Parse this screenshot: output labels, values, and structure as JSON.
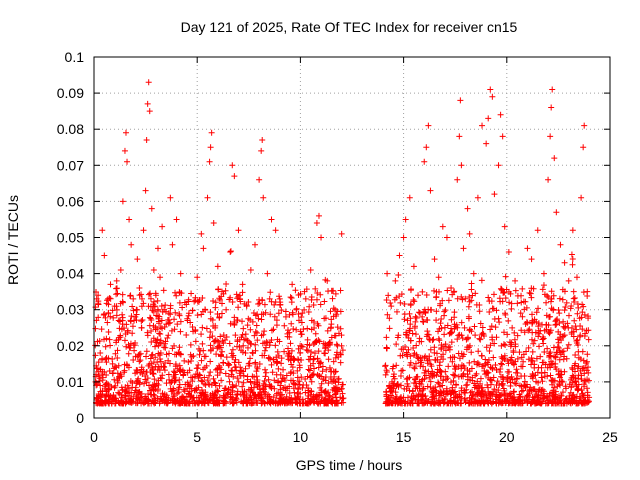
{
  "chart_data": {
    "type": "scatter",
    "title": "Day 121 of 2025, Rate Of TEC Index for receiver cn15",
    "xlabel": "GPS time / hours",
    "ylabel": "ROTI / TECUs",
    "xlim": [
      0,
      25
    ],
    "ylim": [
      0,
      0.1
    ],
    "x_ticks": [
      "0",
      "5",
      "10",
      "15",
      "20",
      "25"
    ],
    "y_ticks": [
      "0",
      "0.01",
      "0.02",
      "0.03",
      "0.04",
      "0.05",
      "0.06",
      "0.07",
      "0.08",
      "0.09",
      "0.1"
    ],
    "grid": true,
    "marker": "+",
    "color": "#ff0000",
    "data_gap_hours": [
      12.1,
      14.1
    ],
    "series": [
      {
        "points": [
          [
            0.1,
            0.012
          ],
          [
            0.2,
            0.034
          ],
          [
            0.3,
            0.018
          ],
          [
            0.4,
            0.052
          ],
          [
            0.5,
            0.045
          ],
          [
            0.6,
            0.022
          ],
          [
            0.7,
            0.029
          ],
          [
            0.8,
            0.037
          ],
          [
            0.9,
            0.015
          ],
          [
            1.0,
            0.031
          ],
          [
            1.1,
            0.038
          ],
          [
            1.2,
            0.027
          ],
          [
            1.3,
            0.041
          ],
          [
            1.4,
            0.06
          ],
          [
            1.5,
            0.074
          ],
          [
            1.55,
            0.079
          ],
          [
            1.6,
            0.071
          ],
          [
            1.7,
            0.055
          ],
          [
            1.8,
            0.048
          ],
          [
            1.9,
            0.033
          ],
          [
            2.0,
            0.028
          ],
          [
            2.1,
            0.044
          ],
          [
            2.2,
            0.036
          ],
          [
            2.3,
            0.025
          ],
          [
            2.4,
            0.052
          ],
          [
            2.5,
            0.063
          ],
          [
            2.55,
            0.077
          ],
          [
            2.6,
            0.087
          ],
          [
            2.65,
            0.093
          ],
          [
            2.7,
            0.085
          ],
          [
            2.8,
            0.058
          ],
          [
            2.9,
            0.041
          ],
          [
            3.0,
            0.034
          ],
          [
            3.1,
            0.047
          ],
          [
            3.2,
            0.039
          ],
          [
            3.3,
            0.053
          ],
          [
            3.4,
            0.03
          ],
          [
            3.5,
            0.026
          ],
          [
            3.7,
            0.061
          ],
          [
            3.8,
            0.048
          ],
          [
            4.0,
            0.055
          ],
          [
            4.2,
            0.04
          ],
          [
            4.4,
            0.032
          ],
          [
            4.6,
            0.029
          ],
          [
            4.8,
            0.024
          ],
          [
            5.0,
            0.039
          ],
          [
            5.2,
            0.051
          ],
          [
            5.3,
            0.047
          ],
          [
            5.5,
            0.061
          ],
          [
            5.6,
            0.071
          ],
          [
            5.65,
            0.075
          ],
          [
            5.7,
            0.079
          ],
          [
            5.8,
            0.054
          ],
          [
            6.0,
            0.042
          ],
          [
            6.2,
            0.035
          ],
          [
            6.4,
            0.03
          ],
          [
            6.6,
            0.046
          ],
          [
            6.7,
            0.07
          ],
          [
            6.8,
            0.067
          ],
          [
            7.0,
            0.052
          ],
          [
            7.2,
            0.037
          ],
          [
            7.4,
            0.031
          ],
          [
            7.6,
            0.041
          ],
          [
            7.8,
            0.048
          ],
          [
            8.0,
            0.066
          ],
          [
            8.1,
            0.074
          ],
          [
            8.15,
            0.077
          ],
          [
            8.2,
            0.061
          ],
          [
            8.4,
            0.04
          ],
          [
            8.6,
            0.055
          ],
          [
            8.8,
            0.052
          ],
          [
            9.0,
            0.033
          ],
          [
            9.3,
            0.028
          ],
          [
            9.6,
            0.037
          ],
          [
            9.8,
            0.03
          ],
          [
            10.0,
            0.024
          ],
          [
            10.2,
            0.035
          ],
          [
            10.5,
            0.041
          ],
          [
            10.8,
            0.054
          ],
          [
            10.9,
            0.056
          ],
          [
            11.0,
            0.05
          ],
          [
            11.3,
            0.038
          ],
          [
            11.5,
            0.026
          ],
          [
            11.8,
            0.02
          ],
          [
            12.0,
            0.051
          ],
          [
            14.2,
            0.04
          ],
          [
            14.4,
            0.031
          ],
          [
            14.6,
            0.038
          ],
          [
            14.8,
            0.045
          ],
          [
            15.0,
            0.05
          ],
          [
            15.1,
            0.055
          ],
          [
            15.3,
            0.061
          ],
          [
            15.5,
            0.042
          ],
          [
            15.7,
            0.034
          ],
          [
            15.9,
            0.028
          ],
          [
            16.0,
            0.071
          ],
          [
            16.1,
            0.075
          ],
          [
            16.2,
            0.081
          ],
          [
            16.3,
            0.063
          ],
          [
            16.5,
            0.044
          ],
          [
            16.7,
            0.039
          ],
          [
            16.9,
            0.053
          ],
          [
            17.1,
            0.05
          ],
          [
            17.3,
            0.036
          ],
          [
            17.6,
            0.066
          ],
          [
            17.7,
            0.078
          ],
          [
            17.75,
            0.088
          ],
          [
            17.8,
            0.07
          ],
          [
            17.9,
            0.047
          ],
          [
            18.1,
            0.058
          ],
          [
            18.2,
            0.051
          ],
          [
            18.4,
            0.04
          ],
          [
            18.6,
            0.061
          ],
          [
            18.8,
            0.081
          ],
          [
            19.0,
            0.076
          ],
          [
            19.1,
            0.083
          ],
          [
            19.2,
            0.091
          ],
          [
            19.3,
            0.089
          ],
          [
            19.4,
            0.062
          ],
          [
            19.6,
            0.07
          ],
          [
            19.7,
            0.084
          ],
          [
            19.8,
            0.078
          ],
          [
            19.9,
            0.053
          ],
          [
            20.1,
            0.046
          ],
          [
            20.4,
            0.038
          ],
          [
            20.7,
            0.032
          ],
          [
            21.0,
            0.047
          ],
          [
            21.2,
            0.044
          ],
          [
            21.5,
            0.052
          ],
          [
            21.8,
            0.04
          ],
          [
            22.0,
            0.066
          ],
          [
            22.1,
            0.078
          ],
          [
            22.15,
            0.086
          ],
          [
            22.2,
            0.091
          ],
          [
            22.3,
            0.072
          ],
          [
            22.4,
            0.057
          ],
          [
            22.6,
            0.048
          ],
          [
            22.8,
            0.043
          ],
          [
            23.0,
            0.038
          ],
          [
            23.2,
            0.052
          ],
          [
            23.4,
            0.039
          ],
          [
            23.6,
            0.061
          ],
          [
            23.7,
            0.075
          ],
          [
            23.75,
            0.081
          ],
          [
            23.9,
            0.035
          ],
          [
            0.3,
            0.009
          ],
          [
            0.7,
            0.006
          ],
          [
            1.2,
            0.011
          ],
          [
            1.8,
            0.007
          ],
          [
            2.4,
            0.013
          ],
          [
            3.1,
            0.008
          ],
          [
            3.9,
            0.01
          ],
          [
            4.5,
            0.006
          ],
          [
            5.1,
            0.012
          ],
          [
            5.9,
            0.009
          ],
          [
            6.5,
            0.007
          ],
          [
            7.1,
            0.013
          ],
          [
            7.9,
            0.01
          ],
          [
            8.5,
            0.006
          ],
          [
            9.2,
            0.011
          ],
          [
            9.9,
            0.008
          ],
          [
            10.6,
            0.012
          ],
          [
            11.2,
            0.007
          ],
          [
            11.7,
            0.01
          ],
          [
            14.3,
            0.009
          ],
          [
            15.2,
            0.011
          ],
          [
            16.4,
            0.007
          ],
          [
            17.4,
            0.012
          ],
          [
            18.5,
            0.009
          ],
          [
            19.5,
            0.006
          ],
          [
            20.5,
            0.011
          ],
          [
            21.3,
            0.008
          ],
          [
            22.5,
            0.012
          ],
          [
            23.1,
            0.007
          ],
          [
            23.8,
            0.01
          ]
        ]
      }
    ]
  }
}
